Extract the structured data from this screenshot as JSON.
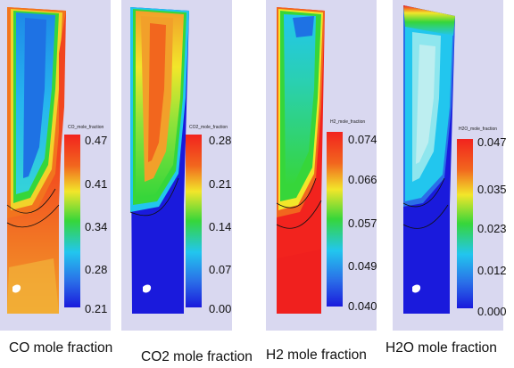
{
  "colors": {
    "panel_background": "#d9d8f0",
    "low": "#1a1adc",
    "mid_cyan": "#22c6ee",
    "mid_green": "#36d63a",
    "mid_yellow": "#f2e62a",
    "high": "#f2231e"
  },
  "panels": [
    {
      "legend_title": "CO_mole_fraction",
      "ticks": [
        "0.47",
        "0.41",
        "0.34",
        "0.28",
        "0.21"
      ],
      "caption": "CO mole fraction"
    },
    {
      "legend_title": "CO2_mole_fraction",
      "ticks": [
        "0.28",
        "0.21",
        "0.14",
        "0.07",
        "0.00"
      ],
      "caption": "CO2 mole fraction"
    },
    {
      "legend_title": "H2_mole_fraction",
      "ticks": [
        "0.074",
        "0.066",
        "0.057",
        "0.049",
        "0.040"
      ],
      "caption": "H2 mole fraction"
    },
    {
      "legend_title": "H2O_mole_fraction",
      "ticks": [
        "0.047",
        "0.035",
        "0.023",
        "0.012",
        "0.000"
      ],
      "caption": "H2O mole fraction"
    }
  ]
}
